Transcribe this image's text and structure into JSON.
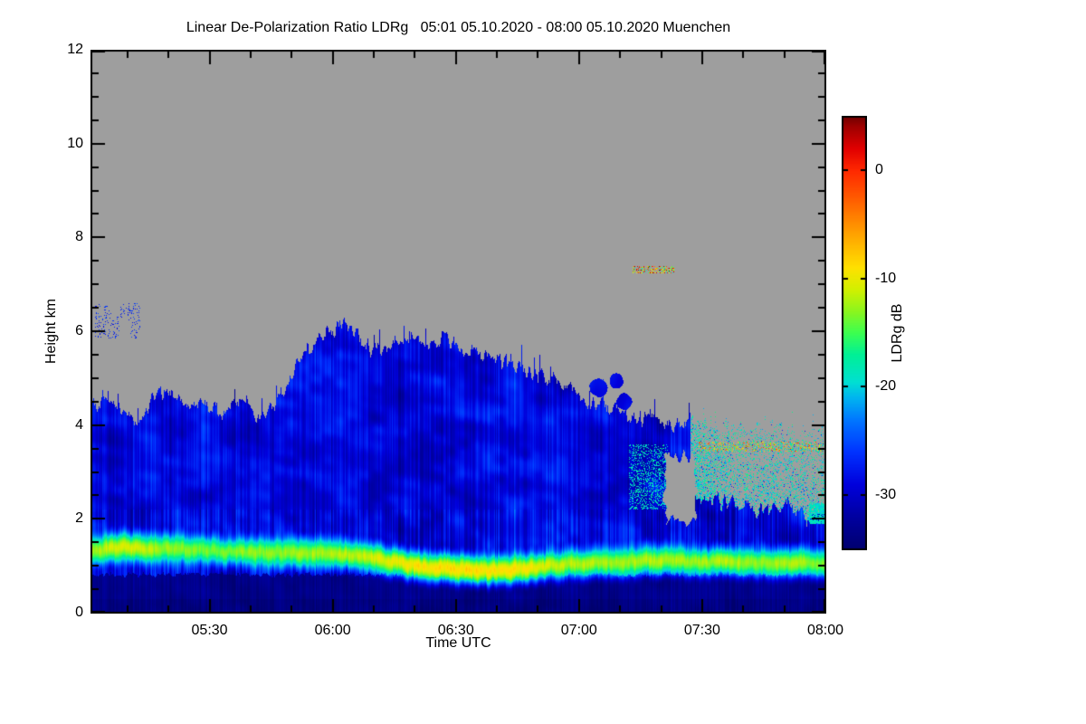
{
  "chart_data": {
    "type": "heatmap",
    "title": "Linear De-Polarization Ratio LDRg   05:01 05.10.2020 - 08:00 05.10.2020 Muenchen",
    "xlabel": "Time UTC",
    "ylabel": "Height km",
    "x_start_label": "05:01",
    "x_end_label": "08:00",
    "x_range_minutes": [
      301,
      480
    ],
    "xticks": [
      {
        "label": "05:30",
        "minutes": 330
      },
      {
        "label": "06:00",
        "minutes": 360
      },
      {
        "label": "06:30",
        "minutes": 390
      },
      {
        "label": "07:00",
        "minutes": 420
      },
      {
        "label": "07:30",
        "minutes": 450
      },
      {
        "label": "08:00",
        "minutes": 480
      }
    ],
    "x_minor_step_minutes": 10,
    "ylim": [
      0,
      12
    ],
    "yticks": [
      0,
      2,
      4,
      6,
      8,
      10,
      12
    ],
    "y_minor_step": 0.5,
    "grid": false,
    "no_data_color": "#9e9e9e",
    "colorbar": {
      "label": "LDRg dB",
      "ticks": [
        0,
        -10,
        -20,
        -30
      ],
      "vmin": -35,
      "vmax": 5,
      "stops": [
        {
          "v": -35,
          "c": "#00006e"
        },
        {
          "v": -32,
          "c": "#0000a0"
        },
        {
          "v": -29,
          "c": "#0000dc"
        },
        {
          "v": -26,
          "c": "#0032ff"
        },
        {
          "v": -23,
          "c": "#0078ff"
        },
        {
          "v": -21,
          "c": "#00b4f0"
        },
        {
          "v": -19.5,
          "c": "#00e0d2"
        },
        {
          "v": -17,
          "c": "#00f096"
        },
        {
          "v": -15,
          "c": "#3cff50"
        },
        {
          "v": -13,
          "c": "#8cf51e"
        },
        {
          "v": -11,
          "c": "#d2f000"
        },
        {
          "v": -9,
          "c": "#ffe100"
        },
        {
          "v": -6,
          "c": "#ffa500"
        },
        {
          "v": -3,
          "c": "#ff6400"
        },
        {
          "v": 0,
          "c": "#ff2800"
        },
        {
          "v": 2,
          "c": "#e10000"
        },
        {
          "v": 4,
          "c": "#a00000"
        },
        {
          "v": 5,
          "c": "#6e0000"
        }
      ]
    },
    "features": {
      "cloud_top_km": [
        [
          301,
          4.35
        ],
        [
          305,
          4.55
        ],
        [
          309,
          4.25
        ],
        [
          313,
          4.05
        ],
        [
          317,
          4.75
        ],
        [
          321,
          4.55
        ],
        [
          324,
          4.4
        ],
        [
          328,
          4.5
        ],
        [
          332,
          4.25
        ],
        [
          336,
          4.45
        ],
        [
          339,
          4.6
        ],
        [
          342,
          4.1
        ],
        [
          345,
          4.3
        ],
        [
          349,
          5.0
        ],
        [
          353,
          5.55
        ],
        [
          356,
          5.75
        ],
        [
          360,
          6.05
        ],
        [
          363,
          6.15
        ],
        [
          366,
          5.95
        ],
        [
          369,
          5.6
        ],
        [
          373,
          5.65
        ],
        [
          377,
          5.8
        ],
        [
          380,
          5.95
        ],
        [
          383,
          5.7
        ],
        [
          387,
          5.85
        ],
        [
          391,
          5.6
        ],
        [
          395,
          5.5
        ],
        [
          399,
          5.45
        ],
        [
          403,
          5.3
        ],
        [
          407,
          5.2
        ],
        [
          411,
          5.1
        ],
        [
          415,
          5.0
        ],
        [
          419,
          4.75
        ],
        [
          423,
          4.45
        ],
        [
          427,
          4.4
        ],
        [
          431,
          4.2
        ],
        [
          435,
          4.15
        ],
        [
          439,
          4.2
        ],
        [
          443,
          4.0
        ],
        [
          447,
          4.1
        ],
        [
          451,
          4.0
        ],
        [
          455,
          3.95
        ],
        [
          459,
          4.05
        ],
        [
          463,
          3.9
        ],
        [
          467,
          4.0
        ],
        [
          471,
          3.85
        ],
        [
          475,
          3.9
        ],
        [
          480,
          4.1
        ]
      ],
      "bright_band_km": [
        [
          301,
          1.35
        ],
        [
          310,
          1.4
        ],
        [
          320,
          1.38
        ],
        [
          330,
          1.32
        ],
        [
          340,
          1.3
        ],
        [
          350,
          1.28
        ],
        [
          360,
          1.27
        ],
        [
          368,
          1.22
        ],
        [
          374,
          1.1
        ],
        [
          380,
          1.0
        ],
        [
          386,
          0.95
        ],
        [
          392,
          0.92
        ],
        [
          398,
          0.9
        ],
        [
          404,
          0.92
        ],
        [
          410,
          1.0
        ],
        [
          416,
          1.05
        ],
        [
          424,
          1.08
        ],
        [
          432,
          1.1
        ],
        [
          440,
          1.12
        ],
        [
          450,
          1.1
        ],
        [
          460,
          1.1
        ],
        [
          470,
          1.06
        ],
        [
          480,
          1.05
        ]
      ],
      "bright_band_db": [
        [
          301,
          -13
        ],
        [
          306,
          -11
        ],
        [
          312,
          -10.5
        ],
        [
          318,
          -13
        ],
        [
          330,
          -13.5
        ],
        [
          342,
          -13
        ],
        [
          354,
          -12.5
        ],
        [
          364,
          -12
        ],
        [
          372,
          -10.5
        ],
        [
          378,
          -9.5
        ],
        [
          384,
          -9
        ],
        [
          392,
          -8.6
        ],
        [
          400,
          -9
        ],
        [
          406,
          -9.5
        ],
        [
          412,
          -11
        ],
        [
          420,
          -12
        ],
        [
          430,
          -12.5
        ],
        [
          440,
          -12
        ],
        [
          448,
          -12.5
        ],
        [
          456,
          -12
        ],
        [
          464,
          -13
        ],
        [
          472,
          -12
        ],
        [
          480,
          -13.5
        ]
      ],
      "cloud_base_db": -29,
      "subcloud_db": -33.3,
      "navy_top_km": 0.82,
      "sparse_region": {
        "t_start": 447,
        "base_km": [
          [
            447,
            2.6
          ],
          [
            452,
            2.4
          ],
          [
            458,
            2.3
          ],
          [
            464,
            2.2
          ],
          [
            470,
            2.3
          ],
          [
            476,
            2.05
          ],
          [
            480,
            2.2
          ]
        ],
        "density": [
          [
            447,
            0.7
          ],
          [
            452,
            0.5
          ],
          [
            457,
            0.33
          ],
          [
            480,
            0.3
          ]
        ]
      },
      "gray_hole": {
        "t_start": 441,
        "t_end": 448.5,
        "h_min": 1.95,
        "h_max": 3.35
      },
      "cyan_patch": {
        "t_start": 432,
        "t_end": 441.5,
        "h_min": 2.2,
        "h_max": 3.6,
        "density": 0.3
      },
      "detached_blobs": [
        [
          424.5,
          4.8,
          2.5,
          0.22
        ],
        [
          429,
          4.95,
          1.8,
          0.18
        ],
        [
          431,
          4.5,
          2.2,
          0.2
        ]
      ],
      "high_speckle_line": {
        "t_start": 433,
        "t_end": 443,
        "h_center": 7.32,
        "h_halfwidth": 0.07,
        "density": 0.45,
        "db_min": -20,
        "db_max": 5
      },
      "mid_speckle_line": {
        "t_start": 449,
        "t_end": 480,
        "h_center": 3.55,
        "h_halfwidth": 0.1,
        "density": 0.3,
        "db_min": -23,
        "db_max": 0
      },
      "left_speckles": {
        "t_start": 302,
        "t_end": 313,
        "h_min": 5.85,
        "h_max": 6.6,
        "density": 0.13,
        "db": -27
      },
      "right_edge_cyan": {
        "t_start": 476,
        "t_end": 480,
        "h_min": 1.9,
        "h_max": 2.35,
        "db": -19
      }
    }
  }
}
